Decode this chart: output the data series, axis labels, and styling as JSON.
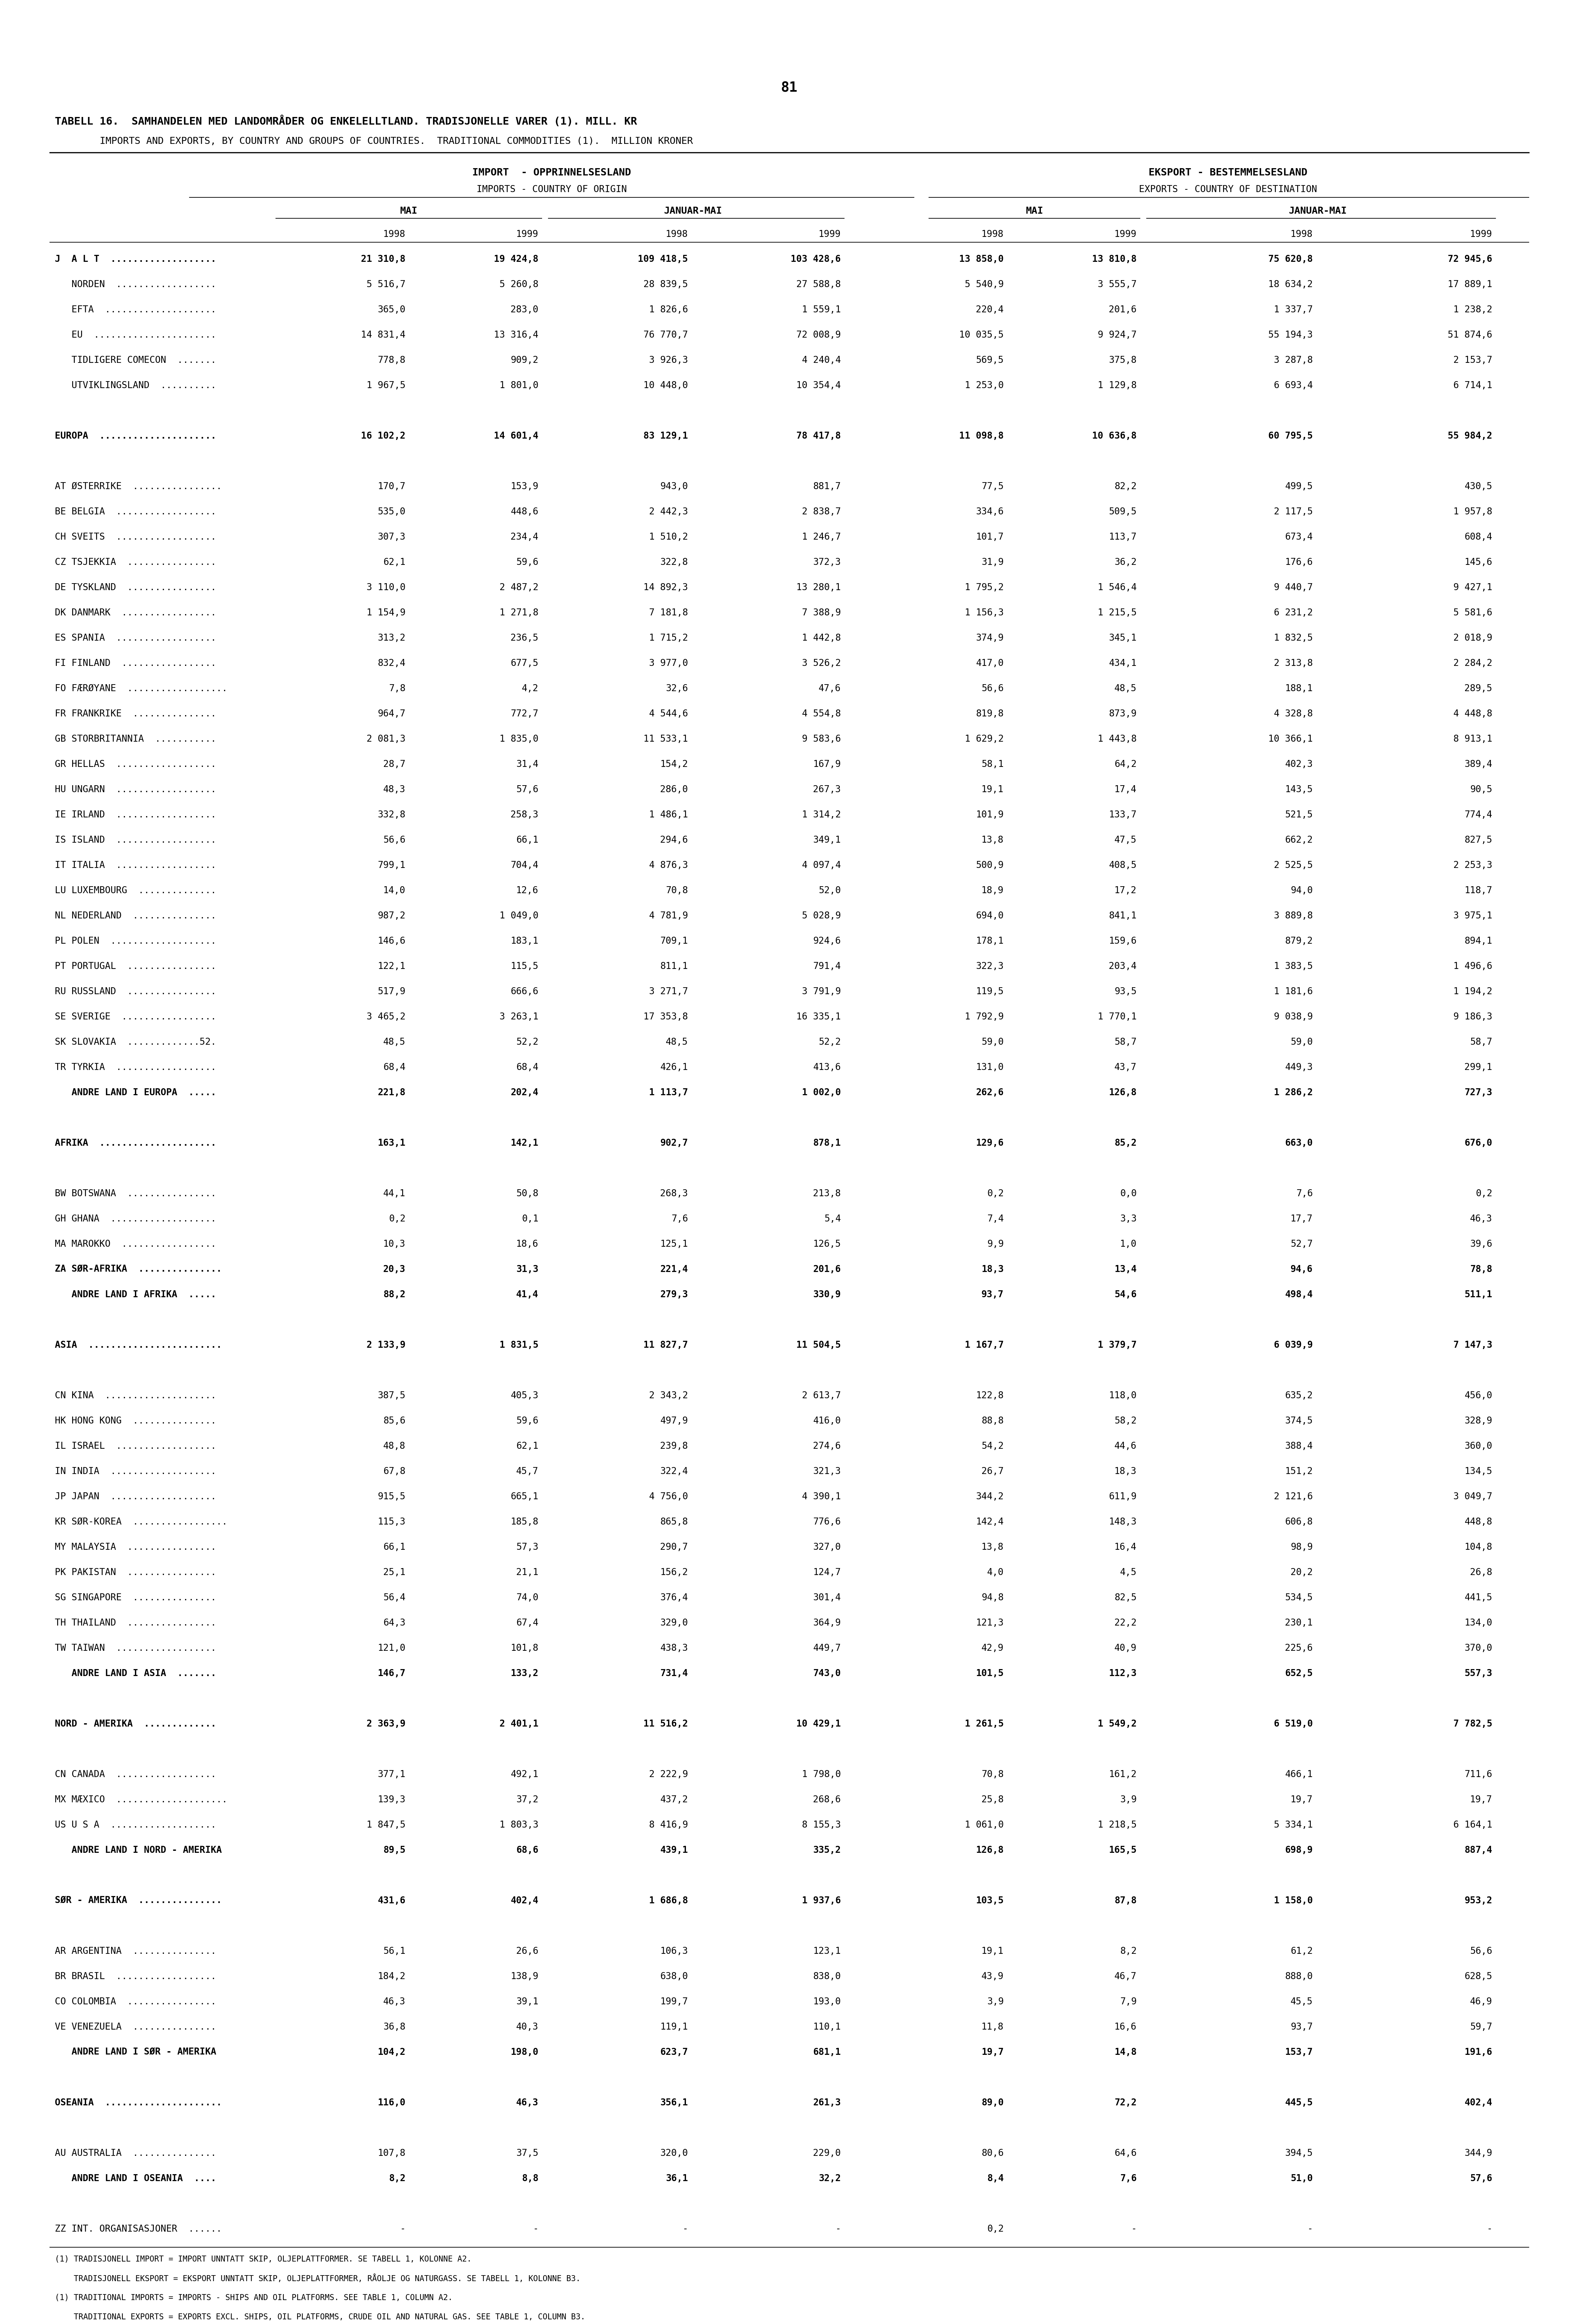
{
  "page_number": "81",
  "title_line1": "TABELL 16.  SAMHANDELEN MED LANDOMRÅDER OG ENKELELLTLAND. TRADISJONELLE VARER (1). MILL. KR",
  "title_line2": "IMPORTS AND EXPORTS, BY COUNTRY AND GROUPS OF COUNTRIES.  TRADITIONAL COMMODITIES (1).  MILLION KRONER",
  "col_header1a": "IMPORT  - OPPRINNELSESLAND",
  "col_header1b": "IMPORTS - COUNTRY OF ORIGIN",
  "col_header2a": "EKSPORT - BESTEMMELSESLAND",
  "col_header2b": "EXPORTS - COUNTRY OF DESTINATION",
  "sub_header_mai": "MAI",
  "sub_header_jan_mai": "JANUAR-MAI",
  "years": [
    "1998",
    "1999",
    "1998",
    "1999",
    "1998",
    "1999",
    "1998",
    "1999"
  ],
  "rows": [
    [
      "J  A L T  ...................",
      "21 310,8",
      "19 424,8",
      "109 418,5",
      "103 428,6",
      "13 858,0",
      "13 810,8",
      "75 620,8",
      "72 945,6"
    ],
    [
      "   NORDEN  ..................",
      "5 516,7",
      "5 260,8",
      "28 839,5",
      "27 588,8",
      "5 540,9",
      "3 555,7",
      "18 634,2",
      "17 889,1"
    ],
    [
      "   EFTA  ....................",
      "365,0",
      "283,0",
      "1 826,6",
      "1 559,1",
      "220,4",
      "201,6",
      "1 337,7",
      "1 238,2"
    ],
    [
      "   EU  ......................",
      "14 831,4",
      "13 316,4",
      "76 770,7",
      "72 008,9",
      "10 035,5",
      "9 924,7",
      "55 194,3",
      "51 874,6"
    ],
    [
      "   TIDLIGERE COMECON  .......",
      "778,8",
      "909,2",
      "3 926,3",
      "4 240,4",
      "569,5",
      "375,8",
      "3 287,8",
      "2 153,7"
    ],
    [
      "   UTVIKLINGSLAND  ..........",
      "1 967,5",
      "1 801,0",
      "10 448,0",
      "10 354,4",
      "1 253,0",
      "1 129,8",
      "6 693,4",
      "6 714,1"
    ],
    [
      "",
      "",
      "",
      "",
      "",
      "",
      "",
      "",
      ""
    ],
    [
      "EUROPA  .....................",
      "16 102,2",
      "14 601,4",
      "83 129,1",
      "78 417,8",
      "11 098,8",
      "10 636,8",
      "60 795,5",
      "55 984,2"
    ],
    [
      "",
      "",
      "",
      "",
      "",
      "",
      "",
      "",
      ""
    ],
    [
      "AT ØSTERRIKE  ................",
      "170,7",
      "153,9",
      "943,0",
      "881,7",
      "77,5",
      "82,2",
      "499,5",
      "430,5"
    ],
    [
      "BE BELGIA  ..................",
      "535,0",
      "448,6",
      "2 442,3",
      "2 838,7",
      "334,6",
      "509,5",
      "2 117,5",
      "1 957,8"
    ],
    [
      "CH SVEITS  ..................",
      "307,3",
      "234,4",
      "1 510,2",
      "1 246,7",
      "101,7",
      "113,7",
      "673,4",
      "608,4"
    ],
    [
      "CZ TSJEKKIA  ................",
      "62,1",
      "59,6",
      "322,8",
      "372,3",
      "31,9",
      "36,2",
      "176,6",
      "145,6"
    ],
    [
      "DE TYSKLAND  ................",
      "3 110,0",
      "2 487,2",
      "14 892,3",
      "13 280,1",
      "1 795,2",
      "1 546,4",
      "9 440,7",
      "9 427,1"
    ],
    [
      "DK DANMARK  .................",
      "1 154,9",
      "1 271,8",
      "7 181,8",
      "7 388,9",
      "1 156,3",
      "1 215,5",
      "6 231,2",
      "5 581,6"
    ],
    [
      "ES SPANIA  ..................",
      "313,2",
      "236,5",
      "1 715,2",
      "1 442,8",
      "374,9",
      "345,1",
      "1 832,5",
      "2 018,9"
    ],
    [
      "FI FINLAND  .................",
      "832,4",
      "677,5",
      "3 977,0",
      "3 526,2",
      "417,0",
      "434,1",
      "2 313,8",
      "2 284,2"
    ],
    [
      "FO FÆRØYANE  ..................",
      "7,8",
      "4,2",
      "32,6",
      "47,6",
      "56,6",
      "48,5",
      "188,1",
      "289,5"
    ],
    [
      "FR FRANKRIKE  ...............",
      "964,7",
      "772,7",
      "4 544,6",
      "4 554,8",
      "819,8",
      "873,9",
      "4 328,8",
      "4 448,8"
    ],
    [
      "GB STORBRITANNIA  ...........",
      "2 081,3",
      "1 835,0",
      "11 533,1",
      "9 583,6",
      "1 629,2",
      "1 443,8",
      "10 366,1",
      "8 913,1"
    ],
    [
      "GR HELLAS  ..................",
      "28,7",
      "31,4",
      "154,2",
      "167,9",
      "58,1",
      "64,2",
      "402,3",
      "389,4"
    ],
    [
      "HU UNGARN  ..................",
      "48,3",
      "57,6",
      "286,0",
      "267,3",
      "19,1",
      "17,4",
      "143,5",
      "90,5"
    ],
    [
      "IE IRLAND  ..................",
      "332,8",
      "258,3",
      "1 486,1",
      "1 314,2",
      "101,9",
      "133,7",
      "521,5",
      "774,4"
    ],
    [
      "IS ISLAND  ..................",
      "56,6",
      "66,1",
      "294,6",
      "349,1",
      "13,8",
      "47,5",
      "662,2",
      "827,5"
    ],
    [
      "IT ITALIA  ..................",
      "799,1",
      "704,4",
      "4 876,3",
      "4 097,4",
      "500,9",
      "408,5",
      "2 525,5",
      "2 253,3"
    ],
    [
      "LU LUXEMBOURG  ..............",
      "14,0",
      "12,6",
      "70,8",
      "52,0",
      "18,9",
      "17,2",
      "94,0",
      "118,7"
    ],
    [
      "NL NEDERLAND  ...............",
      "987,2",
      "1 049,0",
      "4 781,9",
      "5 028,9",
      "694,0",
      "841,1",
      "3 889,8",
      "3 975,1"
    ],
    [
      "PL POLEN  ...................",
      "146,6",
      "183,1",
      "709,1",
      "924,6",
      "178,1",
      "159,6",
      "879,2",
      "894,1"
    ],
    [
      "PT PORTUGAL  ................",
      "122,1",
      "115,5",
      "811,1",
      "791,4",
      "322,3",
      "203,4",
      "1 383,5",
      "1 496,6"
    ],
    [
      "RU RUSSLAND  ................",
      "517,9",
      "666,6",
      "3 271,7",
      "3 791,9",
      "119,5",
      "93,5",
      "1 181,6",
      "1 194,2"
    ],
    [
      "SE SVERIGE  .................",
      "3 465,2",
      "3 263,1",
      "17 353,8",
      "16 335,1",
      "1 792,9",
      "1 770,1",
      "9 038,9",
      "9 186,3"
    ],
    [
      "SK SLOVAKIA  .............52.",
      "48,5",
      "52,2",
      "48,5",
      "52,2",
      "59,0",
      "58,7",
      "59,0",
      "58,7"
    ],
    [
      "TR TYRKIA  ..................",
      "68,4",
      "68,4",
      "426,1",
      "413,6",
      "131,0",
      "43,7",
      "449,3",
      "299,1"
    ],
    [
      "   ANDRE LAND I EUROPA  .....",
      "221,8",
      "202,4",
      "1 113,7",
      "1 002,0",
      "262,6",
      "126,8",
      "1 286,2",
      "727,3"
    ],
    [
      "",
      "",
      "",
      "",
      "",
      "",
      "",
      "",
      ""
    ],
    [
      "AFRIKA  .....................",
      "163,1",
      "142,1",
      "902,7",
      "878,1",
      "129,6",
      "85,2",
      "663,0",
      "676,0"
    ],
    [
      "",
      "",
      "",
      "",
      "",
      "",
      "",
      "",
      ""
    ],
    [
      "BW BOTSWANA  ................",
      "44,1",
      "50,8",
      "268,3",
      "213,8",
      "0,2",
      "0,0",
      "7,6",
      "0,2"
    ],
    [
      "GH GHANA  ...................",
      "0,2",
      "0,1",
      "7,6",
      "5,4",
      "7,4",
      "3,3",
      "17,7",
      "46,3"
    ],
    [
      "MA MAROKKO  .................",
      "10,3",
      "18,6",
      "125,1",
      "126,5",
      "9,9",
      "1,0",
      "52,7",
      "39,6"
    ],
    [
      "ZA SØR-AFRIKA  ...............",
      "20,3",
      "31,3",
      "221,4",
      "201,6",
      "18,3",
      "13,4",
      "94,6",
      "78,8"
    ],
    [
      "   ANDRE LAND I AFRIKA  .....",
      "88,2",
      "41,4",
      "279,3",
      "330,9",
      "93,7",
      "54,6",
      "498,4",
      "511,1"
    ],
    [
      "",
      "",
      "",
      "",
      "",
      "",
      "",
      "",
      ""
    ],
    [
      "ASIA  ........................",
      "2 133,9",
      "1 831,5",
      "11 827,7",
      "11 504,5",
      "1 167,7",
      "1 379,7",
      "6 039,9",
      "7 147,3"
    ],
    [
      "",
      "",
      "",
      "",
      "",
      "",
      "",
      "",
      ""
    ],
    [
      "CN KINA  ....................",
      "387,5",
      "405,3",
      "2 343,2",
      "2 613,7",
      "122,8",
      "118,0",
      "635,2",
      "456,0"
    ],
    [
      "HK HONG KONG  ...............",
      "85,6",
      "59,6",
      "497,9",
      "416,0",
      "88,8",
      "58,2",
      "374,5",
      "328,9"
    ],
    [
      "IL ISRAEL  ..................",
      "48,8",
      "62,1",
      "239,8",
      "274,6",
      "54,2",
      "44,6",
      "388,4",
      "360,0"
    ],
    [
      "IN INDIA  ...................",
      "67,8",
      "45,7",
      "322,4",
      "321,3",
      "26,7",
      "18,3",
      "151,2",
      "134,5"
    ],
    [
      "JP JAPAN  ...................",
      "915,5",
      "665,1",
      "4 756,0",
      "4 390,1",
      "344,2",
      "611,9",
      "2 121,6",
      "3 049,7"
    ],
    [
      "KR SØR-KOREA  .................",
      "115,3",
      "185,8",
      "865,8",
      "776,6",
      "142,4",
      "148,3",
      "606,8",
      "448,8"
    ],
    [
      "MY MALAYSIA  ................",
      "66,1",
      "57,3",
      "290,7",
      "327,0",
      "13,8",
      "16,4",
      "98,9",
      "104,8"
    ],
    [
      "PK PAKISTAN  ................",
      "25,1",
      "21,1",
      "156,2",
      "124,7",
      "4,0",
      "4,5",
      "20,2",
      "26,8"
    ],
    [
      "SG SINGAPORE  ...............",
      "56,4",
      "74,0",
      "376,4",
      "301,4",
      "94,8",
      "82,5",
      "534,5",
      "441,5"
    ],
    [
      "TH THAILAND  ................",
      "64,3",
      "67,4",
      "329,0",
      "364,9",
      "121,3",
      "22,2",
      "230,1",
      "134,0"
    ],
    [
      "TW TAIWAN  ..................",
      "121,0",
      "101,8",
      "438,3",
      "449,7",
      "42,9",
      "40,9",
      "225,6",
      "370,0"
    ],
    [
      "   ANDRE LAND I ASIA  .......",
      "146,7",
      "133,2",
      "731,4",
      "743,0",
      "101,5",
      "112,3",
      "652,5",
      "557,3"
    ],
    [
      "",
      "",
      "",
      "",
      "",
      "",
      "",
      "",
      ""
    ],
    [
      "NORD - AMERIKA  .............",
      "2 363,9",
      "2 401,1",
      "11 516,2",
      "10 429,1",
      "1 261,5",
      "1 549,2",
      "6 519,0",
      "7 782,5"
    ],
    [
      "",
      "",
      "",
      "",
      "",
      "",
      "",
      "",
      ""
    ],
    [
      "CN CANADA  ..................",
      "377,1",
      "492,1",
      "2 222,9",
      "1 798,0",
      "70,8",
      "161,2",
      "466,1",
      "711,6"
    ],
    [
      "MX MÆXICO  ....................",
      "139,3",
      "37,2",
      "437,2",
      "268,6",
      "25,8",
      "3,9",
      "19,7",
      "19,7"
    ],
    [
      "US U S A  ...................",
      "1 847,5",
      "1 803,3",
      "8 416,9",
      "8 155,3",
      "1 061,0",
      "1 218,5",
      "5 334,1",
      "6 164,1"
    ],
    [
      "   ANDRE LAND I NORD - AMERIKA",
      "89,5",
      "68,6",
      "439,1",
      "335,2",
      "126,8",
      "165,5",
      "698,9",
      "887,4"
    ],
    [
      "",
      "",
      "",
      "",
      "",
      "",
      "",
      "",
      ""
    ],
    [
      "SØR - AMERIKA  ...............",
      "431,6",
      "402,4",
      "1 686,8",
      "1 937,6",
      "103,5",
      "87,8",
      "1 158,0",
      "953,2"
    ],
    [
      "",
      "",
      "",
      "",
      "",
      "",
      "",
      "",
      ""
    ],
    [
      "AR ARGENTINA  ...............",
      "56,1",
      "26,6",
      "106,3",
      "123,1",
      "19,1",
      "8,2",
      "61,2",
      "56,6"
    ],
    [
      "BR BRASIL  ..................",
      "184,2",
      "138,9",
      "638,0",
      "838,0",
      "43,9",
      "46,7",
      "888,0",
      "628,5"
    ],
    [
      "CO COLOMBIA  ................",
      "46,3",
      "39,1",
      "199,7",
      "193,0",
      "3,9",
      "7,9",
      "45,5",
      "46,9"
    ],
    [
      "VE VENEZUELA  ...............",
      "36,8",
      "40,3",
      "119,1",
      "110,1",
      "11,8",
      "16,6",
      "93,7",
      "59,7"
    ],
    [
      "   ANDRE LAND I SØR - AMERIKA",
      "104,2",
      "198,0",
      "623,7",
      "681,1",
      "19,7",
      "14,8",
      "153,7",
      "191,6"
    ],
    [
      "",
      "",
      "",
      "",
      "",
      "",
      "",
      "",
      ""
    ],
    [
      "OSEANIA  .....................",
      "116,0",
      "46,3",
      "356,1",
      "261,3",
      "89,0",
      "72,2",
      "445,5",
      "402,4"
    ],
    [
      "",
      "",
      "",
      "",
      "",
      "",
      "",
      "",
      ""
    ],
    [
      "AU AUSTRALIA  ...............",
      "107,8",
      "37,5",
      "320,0",
      "229,0",
      "80,6",
      "64,6",
      "394,5",
      "344,9"
    ],
    [
      "   ANDRE LAND I OSEANIA  ....",
      "8,2",
      "8,8",
      "36,1",
      "32,2",
      "8,4",
      "7,6",
      "51,0",
      "57,6"
    ],
    [
      "",
      "",
      "",
      "",
      "",
      "",
      "",
      "",
      ""
    ],
    [
      "ZZ INT. ORGANISASJONER  ......",
      "-",
      "-",
      "-",
      "-",
      "0,2",
      "-",
      "-",
      "-"
    ]
  ],
  "footnotes": [
    "(1) TRADISJONELL IMPORT = IMPORT UNNTATT SKIP, OLJEPLATTFORMER. SE TABELL 1, KOLONNE A2.",
    "    TRADISJONELL EKSPORT = EKSPORT UNNTATT SKIP, OLJEPLATTFORMER, RÅOLJE OG NATURGASS. SE TABELL 1, KOLONNE B3.",
    "(1) TRADITIONAL IMPORTS = IMPORTS - SHIPS AND OIL PLATFORMS. SEE TABLE 1, COLUMN A2.",
    "    TRADITIONAL EXPORTS = EXPORTS EXCL. SHIPS, OIL PLATFORMS, CRUDE OIL AND NATURAL GAS. SEE TABLE 1, COLUMN B3."
  ]
}
